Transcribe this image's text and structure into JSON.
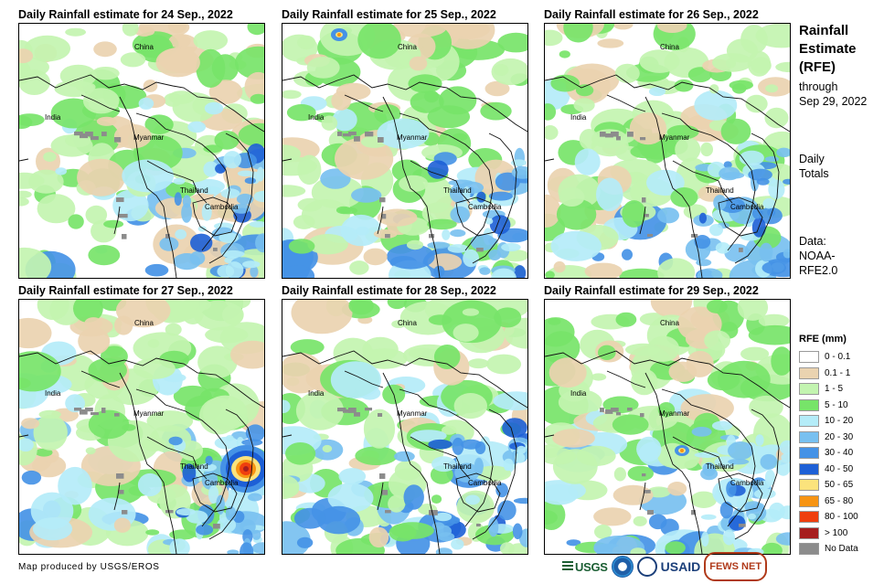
{
  "panels": [
    {
      "title": "Daily Rainfall estimate for 24 Sep., 2022",
      "intensity": 0.3,
      "seed": 24
    },
    {
      "title": "Daily Rainfall estimate for 25 Sep., 2022",
      "intensity": 0.28,
      "seed": 25
    },
    {
      "title": "Daily Rainfall estimate for 26 Sep., 2022",
      "intensity": 0.32,
      "seed": 26
    },
    {
      "title": "Daily Rainfall estimate for 27 Sep., 2022",
      "intensity": 0.48,
      "seed": 27
    },
    {
      "title": "Daily Rainfall estimate for 28 Sep., 2022",
      "intensity": 0.4,
      "seed": 28
    },
    {
      "title": "Daily Rainfall estimate for 29 Sep., 2022",
      "intensity": 0.45,
      "seed": 29
    }
  ],
  "map_labels": {
    "china": "China",
    "india": "India",
    "myanmar": "Myanmar",
    "thailand": "Thailand",
    "cambodia": "Cambodia"
  },
  "sidebar": {
    "title_line1": "Rainfall",
    "title_line2": "Estimate",
    "title_line3": "(RFE)",
    "through_line1": "through",
    "through_line2": "Sep 29, 2022",
    "totals_line1": "Daily",
    "totals_line2": "Totals",
    "data_line1": "Data:",
    "data_line2": "NOAA-",
    "data_line3": "RFE2.0"
  },
  "legend": {
    "title": "RFE (mm)",
    "items": [
      {
        "label": "0 - 0.1",
        "color": "#ffffff"
      },
      {
        "label": "0.1 - 1",
        "color": "#ead3b0"
      },
      {
        "label": "1 - 5",
        "color": "#c3f4b0"
      },
      {
        "label": "5 - 10",
        "color": "#77e469"
      },
      {
        "label": "10 - 20",
        "color": "#b4ecf8"
      },
      {
        "label": "20 - 30",
        "color": "#78c0f0"
      },
      {
        "label": "30 - 40",
        "color": "#4592e6"
      },
      {
        "label": "40 - 50",
        "color": "#1d5fd6"
      },
      {
        "label": "50 - 65",
        "color": "#fbe37c"
      },
      {
        "label": "65 - 80",
        "color": "#f79413"
      },
      {
        "label": "80 - 100",
        "color": "#ef3f0e"
      },
      {
        "label": "> 100",
        "color": "#a61e1e"
      },
      {
        "label": "No Data",
        "color": "#8c8c8c"
      }
    ]
  },
  "footer": {
    "credit": "Map produced by USGS/EROS",
    "logos": {
      "usgs": "USGS",
      "usaid": "USAID",
      "fews": "FEWS NET"
    }
  }
}
